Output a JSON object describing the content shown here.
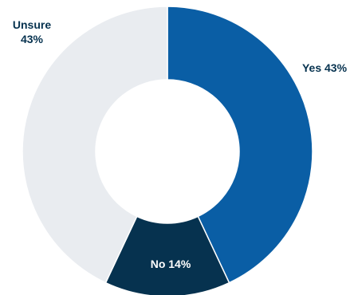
{
  "chart_data": {
    "type": "pie",
    "variant": "donut",
    "categories": [
      "Yes",
      "No",
      "Unsure"
    ],
    "values": [
      43,
      14,
      43
    ],
    "value_labels": [
      "43%",
      "14%",
      "43%"
    ],
    "colors": [
      "#0a5ea5",
      "#06324f",
      "#e9ecf0"
    ],
    "label_colors": [
      "#06324f",
      "#ffffff",
      "#06324f"
    ],
    "slice_labels": [
      "Yes 43%",
      "No 14%",
      "Unsure 43%"
    ],
    "title": "",
    "legend": "none"
  }
}
